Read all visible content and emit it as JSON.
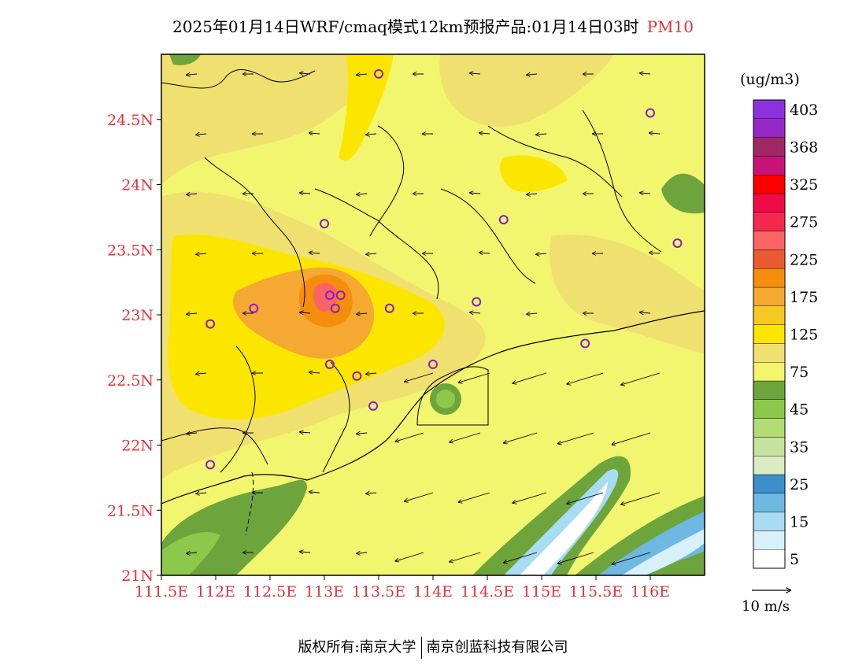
{
  "title": {
    "main": "2025年01月14日WRF/cmaq模式12km预报产品:01月14日03时",
    "variable": "PM10"
  },
  "unit_label": "(ug/m3)",
  "wind_legend_label": "10 m/s",
  "footer": {
    "left": "版权所有:南京大学",
    "right": "南京创蓝科技有限公司"
  },
  "map": {
    "lon_range": [
      111.5,
      116.5
    ],
    "lat_range": [
      21.0,
      25.0
    ],
    "y_ticks": [
      {
        "lat": 24.5,
        "label": "24.5N"
      },
      {
        "lat": 24.0,
        "label": "24N"
      },
      {
        "lat": 23.5,
        "label": "23.5N"
      },
      {
        "lat": 23.0,
        "label": "23N"
      },
      {
        "lat": 22.5,
        "label": "22.5N"
      },
      {
        "lat": 22.0,
        "label": "22N"
      },
      {
        "lat": 21.5,
        "label": "21.5N"
      },
      {
        "lat": 21.0,
        "label": "21N"
      }
    ],
    "x_ticks": [
      {
        "lon": 111.5,
        "label": "111.5E"
      },
      {
        "lon": 112.0,
        "label": "112E"
      },
      {
        "lon": 112.5,
        "label": "112.5E"
      },
      {
        "lon": 113.0,
        "label": "113E"
      },
      {
        "lon": 113.5,
        "label": "113.5E"
      },
      {
        "lon": 114.0,
        "label": "114E"
      },
      {
        "lon": 114.5,
        "label": "114.5E"
      },
      {
        "lon": 115.0,
        "label": "115E"
      },
      {
        "lon": 115.5,
        "label": "115.5E"
      },
      {
        "lon": 116.0,
        "label": "116E"
      }
    ],
    "station_markers": [
      {
        "lon": 113.5,
        "lat": 24.85
      },
      {
        "lon": 116.0,
        "lat": 24.55
      },
      {
        "lon": 113.0,
        "lat": 23.7
      },
      {
        "lon": 114.65,
        "lat": 23.73
      },
      {
        "lon": 116.25,
        "lat": 23.55
      },
      {
        "lon": 113.05,
        "lat": 23.15
      },
      {
        "lon": 113.15,
        "lat": 23.15
      },
      {
        "lon": 113.1,
        "lat": 23.05
      },
      {
        "lon": 112.35,
        "lat": 23.05
      },
      {
        "lon": 113.6,
        "lat": 23.05
      },
      {
        "lon": 114.4,
        "lat": 23.1
      },
      {
        "lon": 111.95,
        "lat": 22.93
      },
      {
        "lon": 115.4,
        "lat": 22.78
      },
      {
        "lon": 113.05,
        "lat": 22.62
      },
      {
        "lon": 114.0,
        "lat": 22.62
      },
      {
        "lon": 113.3,
        "lat": 22.53
      },
      {
        "lon": 113.45,
        "lat": 22.3
      },
      {
        "lon": 111.95,
        "lat": 21.85
      }
    ]
  },
  "colorbar": {
    "colors": [
      "#ffffff",
      "#d8f0fa",
      "#a8dcf2",
      "#6fb8e2",
      "#3c8fca",
      "#dcebc4",
      "#c6e29c",
      "#b4dc74",
      "#8cc84a",
      "#6ea43c",
      "#f2f56e",
      "#f0e070",
      "#fce600",
      "#f7c824",
      "#f5a832",
      "#f58e0a",
      "#ea5a32",
      "#fa6464",
      "#f52850",
      "#f00a46",
      "#ff0000",
      "#c81478",
      "#a02864",
      "#9628c8",
      "#8c32dc"
    ],
    "labels": [
      {
        "index": 1,
        "label": "5"
      },
      {
        "index": 3,
        "label": "15"
      },
      {
        "index": 5,
        "label": "25"
      },
      {
        "index": 7,
        "label": "35"
      },
      {
        "index": 9,
        "label": "45"
      },
      {
        "index": 11,
        "label": "75"
      },
      {
        "index": 13,
        "label": "125"
      },
      {
        "index": 15,
        "label": "175"
      },
      {
        "index": 17,
        "label": "225"
      },
      {
        "index": 19,
        "label": "275"
      },
      {
        "index": 21,
        "label": "325"
      },
      {
        "index": 23,
        "label": "368"
      },
      {
        "index": 25,
        "label": "403"
      }
    ]
  },
  "colors": {
    "accent_red": "#e8313a",
    "marker": "#8a1bd0",
    "background_field": "#f2f56e"
  }
}
